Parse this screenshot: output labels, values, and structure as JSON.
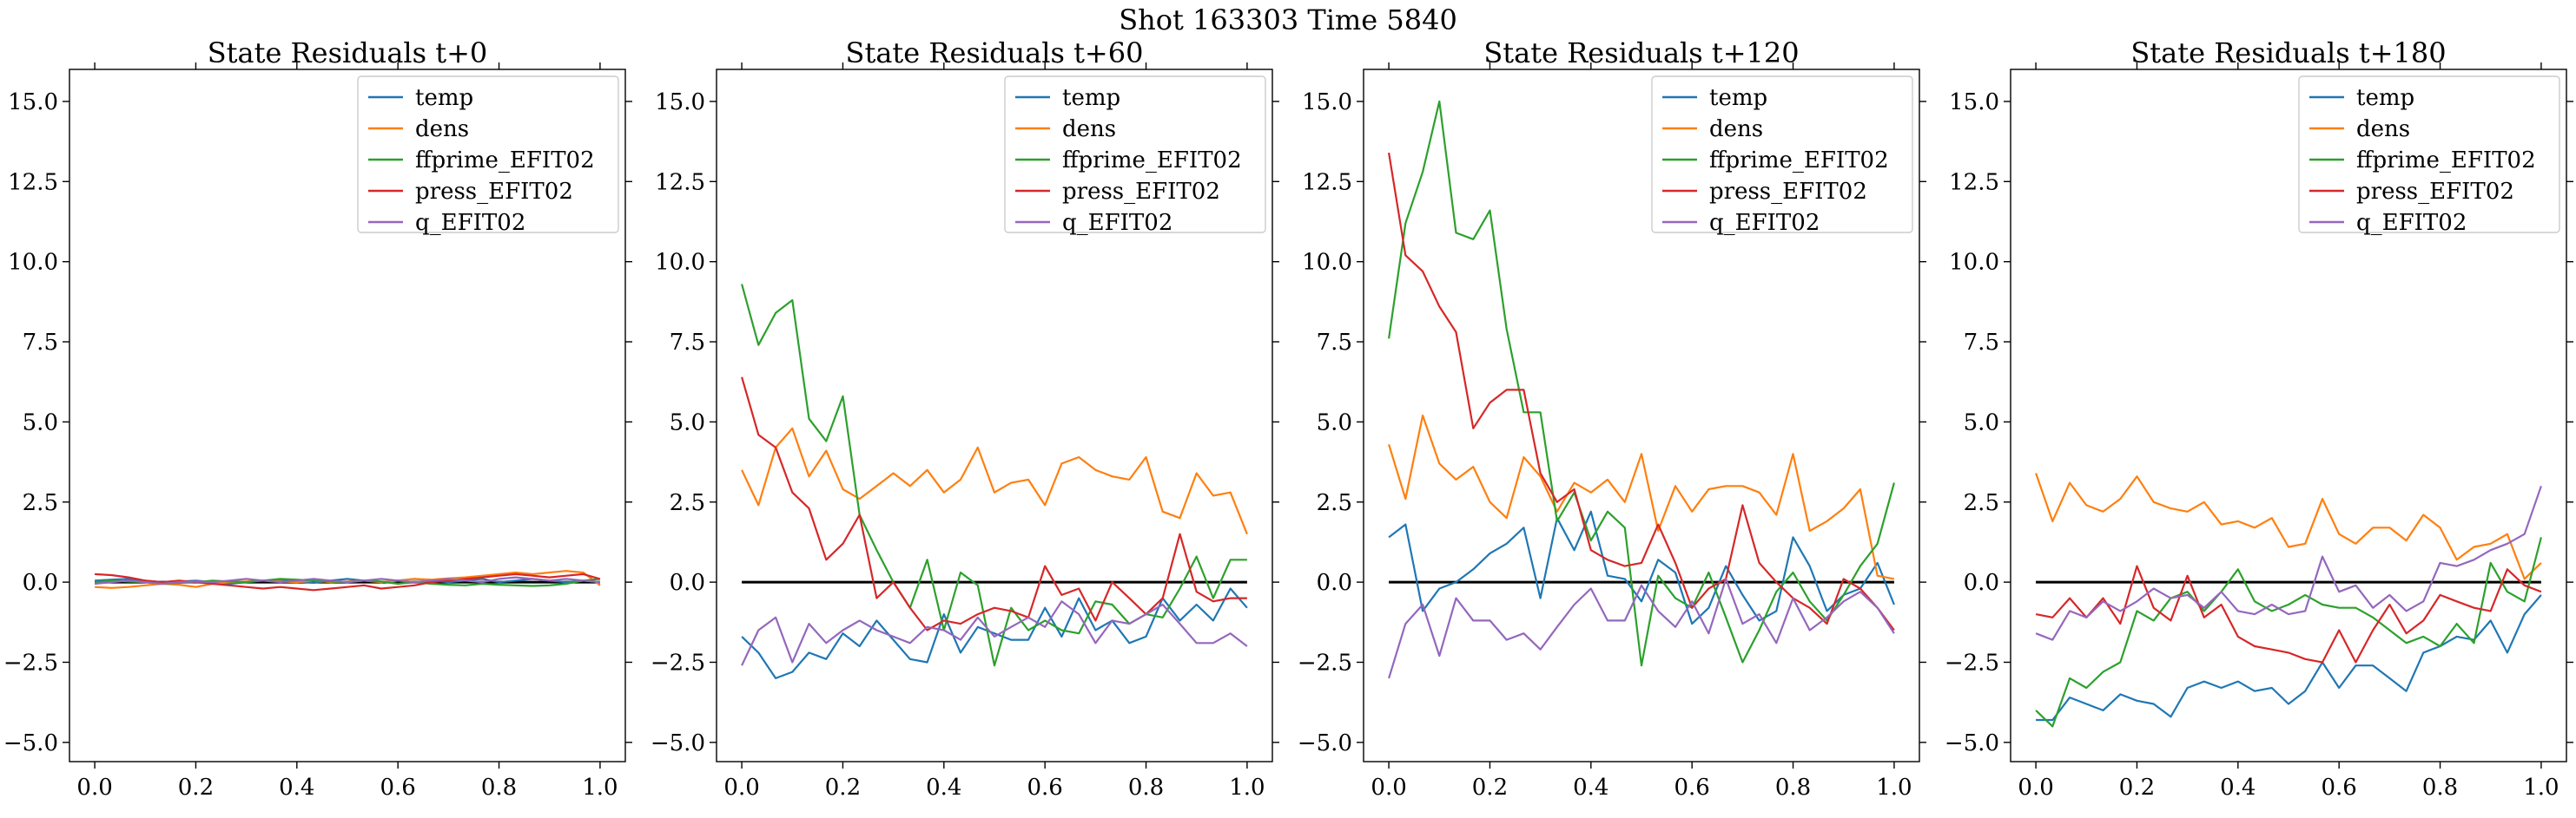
{
  "figure": {
    "suptitle": "Shot 163303   Time 5840"
  },
  "colors": {
    "temp": "#1f77b4",
    "dens": "#ff7f0e",
    "ffprime_EFIT02": "#2ca02c",
    "press_EFIT02": "#d62728",
    "q_EFIT02": "#9467bd",
    "zero_line": "#000000"
  },
  "chart_data": [
    {
      "type": "line",
      "title": "State Residuals t+0",
      "xlim": [
        -0.05,
        1.05
      ],
      "ylim": [
        -5.6,
        16.0
      ],
      "xticks": [
        0.0,
        0.2,
        0.4,
        0.6,
        0.8,
        1.0
      ],
      "xtick_labels": [
        "0.0",
        "0.2",
        "0.4",
        "0.6",
        "0.8",
        "1.0"
      ],
      "yticks": [
        -5.0,
        -2.5,
        0.0,
        2.5,
        5.0,
        7.5,
        10.0,
        12.5,
        15.0
      ],
      "ytick_labels": [
        "−5.0",
        "−2.5",
        "0.0",
        "2.5",
        "5.0",
        "7.5",
        "10.0",
        "12.5",
        "15.0"
      ],
      "legend_position": "top-right",
      "reference_line": {
        "y": 0,
        "x": [
          0,
          1
        ]
      },
      "x": [
        0.0,
        0.033,
        0.067,
        0.1,
        0.133,
        0.167,
        0.2,
        0.233,
        0.267,
        0.3,
        0.333,
        0.367,
        0.4,
        0.433,
        0.467,
        0.5,
        0.533,
        0.567,
        0.6,
        0.633,
        0.667,
        0.7,
        0.733,
        0.767,
        0.8,
        0.833,
        0.867,
        0.9,
        0.933,
        0.967,
        1.0
      ],
      "series": [
        {
          "name": "temp",
          "values": [
            0.05,
            0.08,
            0.1,
            0.05,
            0.0,
            0.02,
            0.05,
            0.0,
            -0.05,
            0.0,
            0.05,
            0.08,
            0.02,
            -0.02,
            0.05,
            0.1,
            0.05,
            0.0,
            0.05,
            0.1,
            0.05,
            0.0,
            0.05,
            0.1,
            0.0,
            0.05,
            0.1,
            0.05,
            0.0,
            0.05,
            0.0
          ]
        },
        {
          "name": "dens",
          "values": [
            -0.15,
            -0.18,
            -0.15,
            -0.1,
            -0.05,
            -0.08,
            -0.15,
            -0.05,
            0.0,
            0.02,
            0.05,
            0.02,
            0.0,
            0.05,
            0.0,
            0.02,
            0.05,
            0.0,
            0.05,
            0.1,
            0.08,
            0.12,
            0.15,
            0.2,
            0.25,
            0.3,
            0.25,
            0.3,
            0.35,
            0.3,
            -0.1
          ]
        },
        {
          "name": "ffprime_EFIT02",
          "values": [
            0.0,
            0.05,
            0.02,
            0.0,
            -0.05,
            -0.02,
            0.0,
            0.05,
            0.02,
            0.0,
            0.05,
            0.1,
            0.08,
            0.05,
            0.02,
            0.0,
            0.05,
            0.02,
            -0.05,
            0.0,
            -0.05,
            -0.08,
            -0.1,
            -0.05,
            -0.08,
            -0.1,
            -0.12,
            -0.1,
            -0.05,
            0.05,
            0.1
          ]
        },
        {
          "name": "press_EFIT02",
          "values": [
            0.25,
            0.22,
            0.15,
            0.05,
            0.0,
            0.05,
            0.0,
            -0.05,
            -0.1,
            -0.15,
            -0.2,
            -0.15,
            -0.2,
            -0.25,
            -0.2,
            -0.15,
            -0.1,
            -0.2,
            -0.15,
            -0.1,
            0.0,
            0.05,
            0.1,
            0.15,
            0.2,
            0.25,
            0.2,
            0.15,
            0.2,
            0.25,
            0.1
          ]
        },
        {
          "name": "q_EFIT02",
          "values": [
            -0.05,
            0.0,
            0.05,
            0.0,
            -0.05,
            0.0,
            0.02,
            0.0,
            0.05,
            0.1,
            0.05,
            0.0,
            0.05,
            0.1,
            0.05,
            0.0,
            0.05,
            0.1,
            0.05,
            0.0,
            0.05,
            0.1,
            0.05,
            0.0,
            0.1,
            0.15,
            0.1,
            0.05,
            0.1,
            0.05,
            0.0
          ]
        }
      ]
    },
    {
      "type": "line",
      "title": "State Residuals t+60",
      "xlim": [
        -0.05,
        1.05
      ],
      "ylim": [
        -5.6,
        16.0
      ],
      "xticks": [
        0.0,
        0.2,
        0.4,
        0.6,
        0.8,
        1.0
      ],
      "xtick_labels": [
        "0.0",
        "0.2",
        "0.4",
        "0.6",
        "0.8",
        "1.0"
      ],
      "yticks": [
        -5.0,
        -2.5,
        0.0,
        2.5,
        5.0,
        7.5,
        10.0,
        12.5,
        15.0
      ],
      "ytick_labels": [
        "−5.0",
        "−2.5",
        "0.0",
        "2.5",
        "5.0",
        "7.5",
        "10.0",
        "12.5",
        "15.0"
      ],
      "legend_position": "top-right",
      "reference_line": {
        "y": 0,
        "x": [
          0,
          1
        ]
      },
      "x": [
        0.0,
        0.033,
        0.067,
        0.1,
        0.133,
        0.167,
        0.2,
        0.233,
        0.267,
        0.3,
        0.333,
        0.367,
        0.4,
        0.433,
        0.467,
        0.5,
        0.533,
        0.567,
        0.6,
        0.633,
        0.667,
        0.7,
        0.733,
        0.767,
        0.8,
        0.833,
        0.867,
        0.9,
        0.933,
        0.967,
        1.0
      ],
      "series": [
        {
          "name": "temp",
          "values": [
            -1.7,
            -2.2,
            -3.0,
            -2.8,
            -2.2,
            -2.4,
            -1.6,
            -2.0,
            -1.2,
            -1.8,
            -2.4,
            -2.5,
            -1.0,
            -2.2,
            -1.4,
            -1.6,
            -1.8,
            -1.8,
            -0.8,
            -1.7,
            -0.5,
            -1.5,
            -1.2,
            -1.9,
            -1.7,
            -0.5,
            -1.2,
            -0.7,
            -1.2,
            -0.2,
            -0.8
          ]
        },
        {
          "name": "dens",
          "values": [
            3.5,
            2.4,
            4.2,
            4.8,
            3.3,
            4.1,
            2.9,
            2.6,
            3.0,
            3.4,
            3.0,
            3.5,
            2.8,
            3.2,
            4.2,
            2.8,
            3.1,
            3.2,
            2.4,
            3.7,
            3.9,
            3.5,
            3.3,
            3.2,
            3.9,
            2.2,
            2.0,
            3.4,
            2.7,
            2.8,
            1.5
          ]
        },
        {
          "name": "ffprime_EFIT02",
          "values": [
            9.3,
            7.4,
            8.4,
            8.8,
            5.1,
            4.4,
            5.8,
            2.1,
            1.0,
            0.0,
            -0.8,
            0.7,
            -1.5,
            0.3,
            -0.1,
            -2.6,
            -0.8,
            -1.5,
            -1.2,
            -1.5,
            -1.6,
            -0.6,
            -0.7,
            -1.3,
            -1.0,
            -1.1,
            -0.2,
            0.8,
            -0.5,
            0.7,
            0.7
          ]
        },
        {
          "name": "press_EFIT02",
          "values": [
            6.4,
            4.6,
            4.2,
            2.8,
            2.3,
            0.7,
            1.2,
            2.1,
            -0.5,
            0.0,
            -0.8,
            -1.5,
            -1.2,
            -1.3,
            -1.0,
            -0.8,
            -0.9,
            -1.1,
            0.5,
            -0.4,
            -0.2,
            -1.2,
            0.0,
            -0.5,
            -1.0,
            -0.5,
            1.5,
            -0.3,
            -0.6,
            -0.5,
            -0.5
          ]
        },
        {
          "name": "q_EFIT02",
          "values": [
            -2.6,
            -1.5,
            -1.1,
            -2.5,
            -1.3,
            -1.9,
            -1.5,
            -1.2,
            -1.5,
            -1.7,
            -1.9,
            -1.4,
            -1.5,
            -1.8,
            -1.1,
            -1.7,
            -1.4,
            -1.1,
            -1.4,
            -0.6,
            -1.0,
            -1.9,
            -1.2,
            -1.3,
            -1.0,
            -0.7,
            -1.3,
            -1.9,
            -1.9,
            -1.6,
            -2.0
          ]
        }
      ]
    },
    {
      "type": "line",
      "title": "State Residuals t+120",
      "xlim": [
        -0.05,
        1.05
      ],
      "ylim": [
        -5.6,
        16.0
      ],
      "xticks": [
        0.0,
        0.2,
        0.4,
        0.6,
        0.8,
        1.0
      ],
      "xtick_labels": [
        "0.0",
        "0.2",
        "0.4",
        "0.6",
        "0.8",
        "1.0"
      ],
      "yticks": [
        -5.0,
        -2.5,
        0.0,
        2.5,
        5.0,
        7.5,
        10.0,
        12.5,
        15.0
      ],
      "ytick_labels": [
        "−5.0",
        "−2.5",
        "0.0",
        "2.5",
        "5.0",
        "7.5",
        "10.0",
        "12.5",
        "15.0"
      ],
      "legend_position": "top-right",
      "reference_line": {
        "y": 0,
        "x": [
          0,
          1
        ]
      },
      "x": [
        0.0,
        0.033,
        0.067,
        0.1,
        0.133,
        0.167,
        0.2,
        0.233,
        0.267,
        0.3,
        0.333,
        0.367,
        0.4,
        0.433,
        0.467,
        0.5,
        0.533,
        0.567,
        0.6,
        0.633,
        0.667,
        0.7,
        0.733,
        0.767,
        0.8,
        0.833,
        0.867,
        0.9,
        0.933,
        0.967,
        1.0
      ],
      "series": [
        {
          "name": "temp",
          "values": [
            1.4,
            1.8,
            -0.9,
            -0.2,
            0.0,
            0.4,
            0.9,
            1.2,
            1.7,
            -0.5,
            2.0,
            1.0,
            2.2,
            0.2,
            0.1,
            -0.6,
            0.7,
            0.3,
            -1.3,
            -0.8,
            0.5,
            -0.4,
            -1.2,
            -0.9,
            1.4,
            0.5,
            -0.9,
            -0.4,
            -0.2,
            0.6,
            -0.7
          ]
        },
        {
          "name": "dens",
          "values": [
            4.3,
            2.6,
            5.2,
            3.7,
            3.2,
            3.6,
            2.5,
            2.0,
            3.9,
            3.3,
            2.2,
            3.1,
            2.8,
            3.2,
            2.5,
            4.0,
            1.6,
            3.0,
            2.2,
            2.9,
            3.0,
            3.0,
            2.8,
            2.1,
            4.0,
            1.6,
            1.9,
            2.3,
            2.9,
            0.2,
            0.1
          ]
        },
        {
          "name": "ffprime_EFIT02",
          "values": [
            7.6,
            11.2,
            12.8,
            15.0,
            10.9,
            10.7,
            11.6,
            7.9,
            5.3,
            5.3,
            1.9,
            2.8,
            1.3,
            2.2,
            1.7,
            -2.6,
            0.2,
            -0.5,
            -0.8,
            0.3,
            -1.1,
            -2.5,
            -1.5,
            -0.3,
            0.3,
            -0.6,
            -1.2,
            -0.4,
            0.5,
            1.2,
            3.1
          ]
        },
        {
          "name": "press_EFIT02",
          "values": [
            13.4,
            10.2,
            9.7,
            8.6,
            7.8,
            4.8,
            5.6,
            6.0,
            6.0,
            3.4,
            2.5,
            2.9,
            1.0,
            0.7,
            0.5,
            0.6,
            1.8,
            0.6,
            -0.8,
            -0.2,
            0.1,
            2.4,
            0.6,
            0.0,
            -0.5,
            -0.8,
            -1.3,
            0.1,
            -0.2,
            -0.8,
            -1.5
          ]
        },
        {
          "name": "q_EFIT02",
          "values": [
            -3.0,
            -1.3,
            -0.7,
            -2.3,
            -0.5,
            -1.2,
            -1.2,
            -1.8,
            -1.6,
            -2.1,
            -1.4,
            -0.7,
            -0.2,
            -1.2,
            -1.2,
            -0.1,
            -0.9,
            -1.4,
            -0.6,
            -1.6,
            0.1,
            -1.3,
            -1.0,
            -1.9,
            -0.5,
            -1.5,
            -1.1,
            -0.6,
            -0.3,
            -0.8,
            -1.6
          ]
        }
      ]
    },
    {
      "type": "line",
      "title": "State Residuals t+180",
      "xlim": [
        -0.05,
        1.05
      ],
      "ylim": [
        -5.6,
        16.0
      ],
      "xticks": [
        0.0,
        0.2,
        0.4,
        0.6,
        0.8,
        1.0
      ],
      "xtick_labels": [
        "0.0",
        "0.2",
        "0.4",
        "0.6",
        "0.8",
        "1.0"
      ],
      "yticks": [
        -5.0,
        -2.5,
        0.0,
        2.5,
        5.0,
        7.5,
        10.0,
        12.5,
        15.0
      ],
      "ytick_labels": [
        "−5.0",
        "−2.5",
        "0.0",
        "2.5",
        "5.0",
        "7.5",
        "10.0",
        "12.5",
        "15.0"
      ],
      "legend_position": "top-right",
      "reference_line": {
        "y": 0,
        "x": [
          0,
          1
        ]
      },
      "x": [
        0.0,
        0.033,
        0.067,
        0.1,
        0.133,
        0.167,
        0.2,
        0.233,
        0.267,
        0.3,
        0.333,
        0.367,
        0.4,
        0.433,
        0.467,
        0.5,
        0.533,
        0.567,
        0.6,
        0.633,
        0.667,
        0.7,
        0.733,
        0.767,
        0.8,
        0.833,
        0.867,
        0.9,
        0.933,
        0.967,
        1.0
      ],
      "series": [
        {
          "name": "temp",
          "values": [
            -4.3,
            -4.3,
            -3.6,
            -3.8,
            -4.0,
            -3.5,
            -3.7,
            -3.8,
            -4.2,
            -3.3,
            -3.1,
            -3.3,
            -3.1,
            -3.4,
            -3.3,
            -3.8,
            -3.4,
            -2.5,
            -3.3,
            -2.6,
            -2.6,
            -3.0,
            -3.4,
            -2.2,
            -2.0,
            -1.7,
            -1.8,
            -1.2,
            -2.2,
            -1.0,
            -0.4
          ]
        },
        {
          "name": "dens",
          "values": [
            3.4,
            1.9,
            3.1,
            2.4,
            2.2,
            2.6,
            3.3,
            2.5,
            2.3,
            2.2,
            2.5,
            1.8,
            1.9,
            1.7,
            2.0,
            1.1,
            1.2,
            2.6,
            1.5,
            1.2,
            1.7,
            1.7,
            1.3,
            2.1,
            1.7,
            0.7,
            1.1,
            1.2,
            1.5,
            0.1,
            0.6
          ]
        },
        {
          "name": "ffprime_EFIT02",
          "values": [
            -4.0,
            -4.5,
            -3.0,
            -3.3,
            -2.8,
            -2.5,
            -0.9,
            -1.2,
            -0.5,
            -0.3,
            -0.9,
            -0.3,
            0.4,
            -0.6,
            -0.9,
            -0.7,
            -0.4,
            -0.7,
            -0.8,
            -0.8,
            -1.1,
            -1.5,
            -1.9,
            -1.7,
            -2.0,
            -1.3,
            -1.9,
            0.6,
            -0.3,
            -0.6,
            1.4
          ]
        },
        {
          "name": "press_EFIT02",
          "values": [
            -1.0,
            -1.1,
            -0.5,
            -1.1,
            -0.5,
            -1.3,
            0.5,
            -0.8,
            -1.2,
            0.2,
            -1.1,
            -0.7,
            -1.7,
            -2.0,
            -2.1,
            -2.2,
            -2.4,
            -2.5,
            -1.5,
            -2.5,
            -1.5,
            -0.7,
            -1.6,
            -1.2,
            -0.4,
            -0.6,
            -0.8,
            -0.9,
            0.4,
            -0.1,
            -0.3
          ]
        },
        {
          "name": "q_EFIT02",
          "values": [
            -1.6,
            -1.8,
            -0.9,
            -1.1,
            -0.6,
            -0.9,
            -0.6,
            -0.2,
            -0.5,
            -0.4,
            -0.8,
            -0.3,
            -0.9,
            -1.0,
            -0.7,
            -1.0,
            -0.9,
            0.8,
            -0.3,
            -0.1,
            -0.8,
            -0.4,
            -0.9,
            -0.6,
            0.6,
            0.5,
            0.7,
            1.0,
            1.2,
            1.5,
            3.0
          ]
        }
      ]
    }
  ]
}
